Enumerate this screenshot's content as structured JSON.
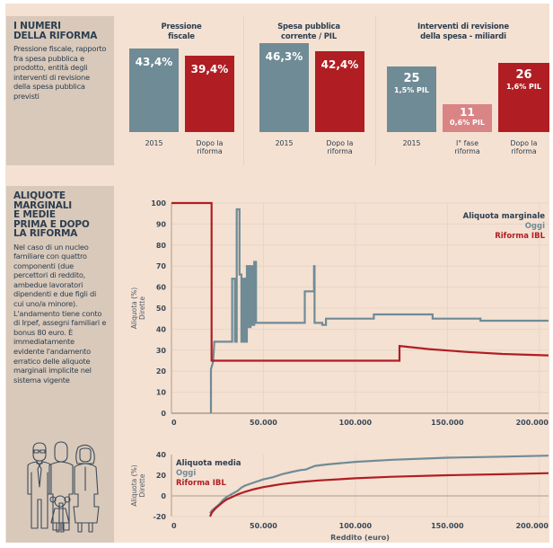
{
  "colors": {
    "background": "#f4e1d2",
    "sidebar": "#d9c9ba",
    "text": "#2c3e50",
    "oggi": "#6f8b96",
    "riforma": "#b01e23",
    "fase1": "#d98485",
    "grid": "#e6d6c8",
    "axis": "#b09a88"
  },
  "section1": {
    "title": "I NUMERI\nDELLA RIFORMA",
    "title_lines": [
      "I NUMERI",
      "DELLA RIFORMA"
    ],
    "description": "Pressione fiscale, rapporto fra spesa pubblica e prodotto, entità degli interventi di revisione della spesa pubblica previsti"
  },
  "section2": {
    "title_lines": [
      "ALIQUOTE",
      "MARGINALI",
      "E MEDIE",
      "PRIMA E DOPO",
      "LA RIFORMA"
    ],
    "description": "Nel caso di un nucleo familiare con quattro componenti (due percettori di reddito, ambedue lavoratori dipendenti e due figli di cui uno/a minore). L'andamento tiene conto di Irpef, assegni familiari e bonus 80 euro. È immediatamente evidente l'andamento erratico delle aliquote marginali implicite nel sistema vigente",
    "illustration": "family-icon"
  },
  "chart_data": [
    {
      "type": "bar",
      "title": "Pressione fiscale",
      "title_lines": [
        "Pressione",
        "fiscale"
      ],
      "categories": [
        "2015",
        "Dopo la riforma"
      ],
      "category_lines": [
        [
          "2015"
        ],
        [
          "Dopo la",
          "riforma"
        ]
      ],
      "values": [
        43.4,
        39.4
      ],
      "labels": [
        "43,4%",
        "39,4%"
      ],
      "colors": [
        "#6f8b96",
        "#b01e23"
      ],
      "unit": "%"
    },
    {
      "type": "bar",
      "title": "Spesa pubblica corrente / PIL",
      "title_lines": [
        "Spesa pubblica",
        "corrente / PIL"
      ],
      "categories": [
        "2015",
        "Dopo la riforma"
      ],
      "category_lines": [
        [
          "2015"
        ],
        [
          "Dopo la",
          "riforma"
        ]
      ],
      "values": [
        46.3,
        42.4
      ],
      "labels": [
        "46,3%",
        "42,4%"
      ],
      "colors": [
        "#6f8b96",
        "#b01e23"
      ],
      "unit": "%"
    },
    {
      "type": "bar",
      "title": "Interventi di revisione della spesa - miliardi",
      "title_lines": [
        "Interventi di revisione",
        "della spesa - miliardi"
      ],
      "categories": [
        "2015",
        "I° fase riforma",
        "Dopo la riforma"
      ],
      "category_lines": [
        [
          "2015"
        ],
        [
          "I° fase",
          "riforma"
        ],
        [
          "Dopo la",
          "riforma"
        ]
      ],
      "values": [
        25,
        11,
        26
      ],
      "labels": [
        "25",
        "11",
        "26"
      ],
      "sublabels": [
        "1,5% PIL",
        "0,6% PIL",
        "1,6% PIL"
      ],
      "colors": [
        "#6f8b96",
        "#d98485",
        "#b01e23"
      ],
      "unit": "miliardi"
    },
    {
      "type": "line",
      "title": "Aliquota marginale",
      "xlabel": "Reddito (euro)",
      "ylabel_lines": [
        "Aliquota (%)",
        "Dirette"
      ],
      "xlim": [
        0,
        205000
      ],
      "ylim": [
        0,
        100
      ],
      "xticks": [
        0,
        50000,
        100000,
        150000,
        200000
      ],
      "xtick_labels": [
        "0",
        "50.000",
        "100.000",
        "150.000",
        "200.000"
      ],
      "yticks": [
        0,
        10,
        20,
        30,
        40,
        50,
        60,
        70,
        80,
        90,
        100
      ],
      "ytick_labels": [
        "0",
        "10",
        "20",
        "30",
        "40",
        "50",
        "60",
        "70",
        "80",
        "90",
        "100"
      ],
      "grid": true,
      "legend_position": "top-right",
      "legend_title": "Aliquota marginale",
      "series": [
        {
          "name": "Oggi",
          "color": "#6f8b96",
          "x": [
            21500,
            21500,
            21800,
            22500,
            22700,
            23300,
            23500,
            33000,
            33000,
            34500,
            34500,
            35500,
            35500,
            37000,
            37000,
            38000,
            38000,
            39000,
            39000,
            40000,
            40000,
            41000,
            41000,
            42000,
            42000,
            43000,
            43000,
            44000,
            44000,
            45000,
            45000,
            46000,
            46000,
            72500,
            72500,
            77500,
            77500,
            77800,
            77800,
            82000,
            82000,
            84000,
            84000,
            110000,
            110000,
            142000,
            142000,
            168000,
            168000,
            205000
          ],
          "y": [
            0,
            21,
            22,
            24,
            25,
            34,
            34,
            34,
            64,
            64,
            34,
            34,
            97,
            97,
            66,
            66,
            34,
            34,
            64,
            64,
            34,
            34,
            70,
            70,
            41,
            41,
            70,
            70,
            42,
            42,
            72,
            72,
            43,
            43,
            58,
            58,
            70,
            70,
            43,
            43,
            42,
            42,
            45,
            45,
            47,
            47,
            45,
            45,
            44,
            44
          ]
        },
        {
          "name": "Riforma IBL",
          "color": "#b01e23",
          "x": [
            0,
            21800,
            21800,
            124000,
            124000,
            140000,
            160000,
            180000,
            205000
          ],
          "y": [
            100,
            100,
            25,
            25,
            32,
            30.5,
            29.2,
            28.2,
            27.5
          ]
        }
      ]
    },
    {
      "type": "line",
      "title": "Aliquota media",
      "xlabel": "Reddito (euro)",
      "ylabel_lines": [
        "Aliquota (%)",
        "Dirette"
      ],
      "xlim": [
        0,
        205000
      ],
      "ylim": [
        -20,
        40
      ],
      "xticks": [
        0,
        50000,
        100000,
        150000,
        200000
      ],
      "xtick_labels": [
        "0",
        "50.000",
        "100.000",
        "150.000",
        "200.000"
      ],
      "yticks": [
        -20,
        0,
        20,
        40
      ],
      "ytick_labels": [
        "-20",
        "0",
        "20",
        "40"
      ],
      "grid": true,
      "legend_position": "top-left",
      "legend_title": "Aliquota media",
      "series": [
        {
          "name": "Oggi",
          "color": "#6f8b96",
          "x": [
            21000,
            22000,
            24000,
            26000,
            28000,
            30000,
            33000,
            36000,
            38000,
            40000,
            45000,
            50000,
            55000,
            60000,
            65000,
            70000,
            73000,
            75000,
            78000,
            85000,
            100000,
            120000,
            150000,
            180000,
            205000
          ],
          "y": [
            -17,
            -14,
            -11,
            -8,
            -4,
            -1,
            2,
            5,
            8,
            10,
            13,
            16,
            18,
            21,
            23,
            25,
            25.5,
            27,
            29,
            30.5,
            33,
            35,
            37,
            38,
            39
          ]
        },
        {
          "name": "Riforma IBL",
          "color": "#b01e23",
          "x": [
            21000,
            22000,
            24000,
            26000,
            28000,
            30000,
            33000,
            36000,
            40000,
            45000,
            50000,
            55000,
            60000,
            70000,
            80000,
            100000,
            120000,
            150000,
            180000,
            205000
          ],
          "y": [
            -20,
            -16,
            -12,
            -9,
            -6,
            -3.5,
            -1,
            1.5,
            4,
            6.5,
            8.5,
            10,
            11.5,
            13.5,
            15,
            17,
            18.5,
            20,
            21,
            22
          ]
        }
      ]
    }
  ]
}
